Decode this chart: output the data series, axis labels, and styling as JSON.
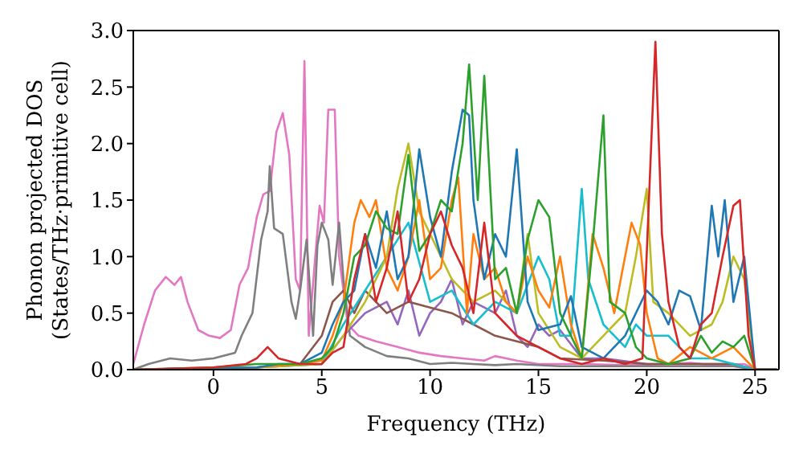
{
  "chart_data": {
    "type": "line",
    "xlabel": "Frequency (THz)",
    "ylabel": "Phonon projected DOS\n(States/THz·primitive cell)",
    "xlim": [
      -3.7,
      26.1
    ],
    "xticks": [
      0,
      5,
      10,
      15,
      20,
      25
    ],
    "ylim": [
      0,
      3.0
    ],
    "yticks": [
      {
        "value": 0,
        "label": "0.0"
      },
      {
        "value": 0.5,
        "label": "0.5"
      },
      {
        "value": 1,
        "label": "1.0"
      },
      {
        "value": 1.5,
        "label": "1.5"
      },
      {
        "value": 2,
        "label": "2.0"
      },
      {
        "value": 2.5,
        "label": "2.5"
      },
      {
        "value": 3,
        "label": "3.0"
      }
    ],
    "grid": false,
    "legend": false,
    "marker": "none",
    "line_style": "solid",
    "series": [
      {
        "color": "#e377c2",
        "x": [
          -3.7,
          -3.2,
          -2.7,
          -2.2,
          -1.8,
          -1.5,
          -1.2,
          -0.7,
          -0.2,
          0.3,
          0.8,
          1.2,
          1.6,
          2.0,
          2.3,
          2.6,
          2.9,
          3.2,
          3.5,
          3.8,
          4.0,
          4.2,
          4.4,
          4.7,
          4.9,
          5.1,
          5.3,
          5.6,
          5.8,
          6.2,
          6.7,
          7.5,
          8.5,
          9.5,
          10.5,
          11.5,
          12.5,
          13,
          14,
          15,
          17,
          19,
          21,
          22,
          23,
          24.5,
          25,
          26
        ],
        "values": [
          0.05,
          0.4,
          0.7,
          0.82,
          0.75,
          0.82,
          0.6,
          0.35,
          0.3,
          0.28,
          0.35,
          0.75,
          0.9,
          1.35,
          1.55,
          1.58,
          2.1,
          2.27,
          1.9,
          0.8,
          0.7,
          2.73,
          0.3,
          1.0,
          1.45,
          1.3,
          2.3,
          2.3,
          1.0,
          0.4,
          0.3,
          0.25,
          0.2,
          0.15,
          0.12,
          0.1,
          0.08,
          0.12,
          0.08,
          0.05,
          0.05,
          0.04,
          0.05,
          0.06,
          0.04,
          0.05,
          0,
          0
        ]
      },
      {
        "color": "#7f7f7f",
        "x": [
          -3.7,
          -3,
          -2,
          -1,
          0,
          1,
          1.3,
          1.8,
          2.2,
          2.5,
          2.6,
          2.8,
          3.2,
          3.6,
          3.8,
          4.0,
          4.3,
          4.6,
          4.8,
          5.0,
          5.3,
          5.5,
          5.8,
          6.0,
          6.3,
          7,
          8,
          9,
          10,
          11,
          12,
          13,
          14,
          16,
          20,
          24,
          25,
          26
        ],
        "values": [
          0,
          0.05,
          0.1,
          0.08,
          0.1,
          0.15,
          0.3,
          0.5,
          1.15,
          1.4,
          1.8,
          1.25,
          1.2,
          0.6,
          0.45,
          0.7,
          1.15,
          0.3,
          1.1,
          1.3,
          1.15,
          0.75,
          1.3,
          0.8,
          0.3,
          0.2,
          0.12,
          0.1,
          0.05,
          0.06,
          0.05,
          0.04,
          0.05,
          0.03,
          0.03,
          0.03,
          0,
          0
        ]
      },
      {
        "color": "#9467bd",
        "x": [
          -3.7,
          2,
          5,
          6,
          7,
          8,
          8.5,
          9,
          9.5,
          10,
          10.5,
          11,
          11.5,
          12,
          13,
          13.5,
          14,
          14.5,
          15,
          15.5,
          16,
          17,
          18,
          20,
          22,
          24,
          25,
          26
        ],
        "values": [
          0,
          0.02,
          0.05,
          0.3,
          0.5,
          0.6,
          0.4,
          0.7,
          0.3,
          0.5,
          0.6,
          0.8,
          0.4,
          0.6,
          0.5,
          0.7,
          0.3,
          0.2,
          0.4,
          0.3,
          0.35,
          0.1,
          0.1,
          0.05,
          0.05,
          0.05,
          0,
          0
        ]
      },
      {
        "color": "#8c564b",
        "x": [
          -3.7,
          2,
          4,
          5,
          5.5,
          6,
          6.5,
          7,
          8,
          9,
          10,
          11,
          12,
          13,
          14,
          15,
          16,
          18,
          20,
          22,
          24,
          25,
          26
        ],
        "values": [
          0,
          0.02,
          0.05,
          0.3,
          0.6,
          0.7,
          0.5,
          0.7,
          0.5,
          0.6,
          0.55,
          0.5,
          0.4,
          0.3,
          0.25,
          0.2,
          0.1,
          0.08,
          0.05,
          0.05,
          0.05,
          0,
          0
        ]
      },
      {
        "color": "#17becf",
        "x": [
          -3.7,
          2,
          5,
          6,
          7,
          8,
          9,
          10,
          11,
          12,
          13,
          14,
          15,
          15.5,
          16,
          16.5,
          17,
          17.3,
          18,
          19,
          19.5,
          20,
          21,
          22,
          23,
          24,
          25,
          26
        ],
        "values": [
          0,
          0.02,
          0.05,
          0.4,
          0.7,
          1.0,
          1.3,
          0.6,
          0.7,
          0.4,
          0.6,
          0.5,
          1.0,
          0.8,
          0.3,
          0.3,
          1.6,
          0.8,
          0.4,
          0.2,
          0.4,
          0.3,
          0.3,
          0.1,
          0.1,
          0.05,
          0,
          0
        ]
      },
      {
        "color": "#bcbd22",
        "x": [
          -3.7,
          2,
          5,
          6,
          7,
          8,
          8.5,
          9,
          9.5,
          10,
          10.5,
          11,
          12,
          13,
          14,
          14.5,
          15,
          16,
          17,
          18,
          18.5,
          19,
          19.5,
          20,
          20.3,
          21,
          22,
          23,
          23.5,
          24,
          24.5,
          25,
          26
        ],
        "values": [
          0,
          0.02,
          0.05,
          0.3,
          0.6,
          1.0,
          1.6,
          2.0,
          1.4,
          1.2,
          1.0,
          0.8,
          0.6,
          0.7,
          0.5,
          1.2,
          0.5,
          0.2,
          0.1,
          0.3,
          0.4,
          0.5,
          1.0,
          1.6,
          0.6,
          0.5,
          0.3,
          0.4,
          0.6,
          1.0,
          0.8,
          0,
          0
        ]
      },
      {
        "color": "#ff7f0e",
        "x": [
          -3.7,
          2,
          4,
          5,
          5.5,
          6,
          6.5,
          6.8,
          7.2,
          7.5,
          8,
          8.5,
          9,
          9.5,
          10,
          10.5,
          11,
          11.3,
          11.7,
          12,
          12.5,
          13,
          13.5,
          14,
          14.5,
          15,
          15.5,
          16,
          16.5,
          17,
          17.5,
          18,
          18.5,
          19,
          19.3,
          19.7,
          20,
          20.5,
          21,
          22,
          23,
          24,
          25,
          26
        ],
        "values": [
          0,
          0.02,
          0.05,
          0.08,
          0.3,
          0.6,
          1.3,
          1.5,
          1.35,
          1.5,
          0.9,
          0.7,
          1.0,
          1.5,
          0.8,
          0.9,
          1.5,
          1.7,
          0.5,
          1.2,
          0.8,
          0.9,
          0.6,
          0.5,
          1.0,
          0.7,
          0.55,
          1.0,
          0.4,
          0.1,
          1.2,
          0.9,
          0.5,
          1.0,
          1.3,
          1.1,
          0.5,
          0.1,
          0.05,
          0.2,
          0.1,
          0.2,
          0,
          0
        ]
      },
      {
        "color": "#1f77b4",
        "x": [
          -3.7,
          2,
          3,
          4,
          5,
          5.5,
          6,
          6.5,
          7,
          7.5,
          8,
          8.5,
          9,
          9.5,
          10,
          10.5,
          11,
          11.5,
          11.8,
          12,
          12.5,
          13,
          13.5,
          14,
          14.5,
          15,
          16,
          16.5,
          17,
          18,
          19,
          20,
          20.5,
          21,
          21.5,
          22,
          22.5,
          23,
          23.3,
          23.6,
          24,
          24.5,
          25,
          26
        ],
        "values": [
          0,
          0.02,
          0.05,
          0.05,
          0.15,
          0.4,
          0.6,
          0.7,
          1.2,
          0.9,
          1.4,
          0.8,
          1.0,
          1.95,
          1.35,
          1.0,
          1.75,
          2.3,
          2.25,
          1.5,
          0.8,
          1.2,
          1.0,
          1.95,
          0.6,
          0.35,
          0.4,
          0.65,
          0.2,
          0.1,
          0.3,
          0.7,
          0.6,
          0.4,
          0.7,
          0.65,
          0.35,
          1.45,
          1.0,
          1.5,
          0.6,
          1.0,
          0,
          0
        ]
      },
      {
        "color": "#2ca02c",
        "x": [
          -3.7,
          0,
          2,
          4,
          5,
          5.5,
          6,
          6.5,
          7,
          7.5,
          8,
          8.5,
          9,
          9.5,
          10,
          10.5,
          11,
          11.5,
          11.8,
          12.2,
          12.5,
          13,
          13.5,
          14,
          14.5,
          15,
          15.5,
          16,
          16.5,
          17,
          17.5,
          18,
          18.3,
          19,
          19.5,
          20,
          21,
          22,
          22.5,
          23,
          23.5,
          24,
          24.5,
          25,
          26
        ],
        "values": [
          0,
          0.02,
          0.05,
          0.05,
          0.1,
          0.2,
          0.5,
          1.0,
          1.1,
          1.4,
          1.25,
          1.2,
          1.9,
          1.05,
          1.2,
          1.5,
          1.4,
          2.0,
          2.7,
          1.5,
          2.6,
          0.8,
          0.9,
          0.5,
          1.15,
          1.5,
          1.35,
          0.5,
          0.3,
          0.1,
          1.1,
          2.25,
          0.6,
          0.5,
          0.2,
          0.1,
          0.05,
          0.1,
          0.3,
          0.15,
          0.25,
          0.2,
          0.3,
          0,
          0
        ]
      },
      {
        "color": "#d62728",
        "x": [
          -3.7,
          0,
          1.5,
          2,
          2.5,
          3,
          4,
          5,
          5.5,
          6,
          6.5,
          7,
          7.5,
          8,
          8.5,
          9,
          9.5,
          10,
          10.5,
          11,
          11.5,
          12,
          12.5,
          13,
          13.5,
          14,
          15,
          16,
          17,
          18,
          19,
          19.8,
          20.1,
          20.4,
          20.7,
          21,
          21.5,
          22,
          22.5,
          23,
          23.5,
          24,
          24.3,
          24.7,
          25,
          26
        ],
        "values": [
          0,
          0.02,
          0.05,
          0.1,
          0.2,
          0.1,
          0.05,
          0.05,
          0.15,
          0.2,
          0.8,
          1.2,
          0.6,
          0.9,
          1.4,
          0.6,
          0.8,
          1.2,
          1.4,
          1.1,
          0.9,
          0.5,
          1.3,
          0.5,
          0.4,
          0.3,
          0.2,
          0.1,
          0.05,
          0.1,
          0.05,
          0.1,
          1.5,
          2.9,
          1.2,
          0.6,
          0.2,
          0.1,
          0.4,
          0.5,
          1.0,
          1.45,
          1.5,
          0.3,
          0,
          0
        ]
      }
    ]
  }
}
